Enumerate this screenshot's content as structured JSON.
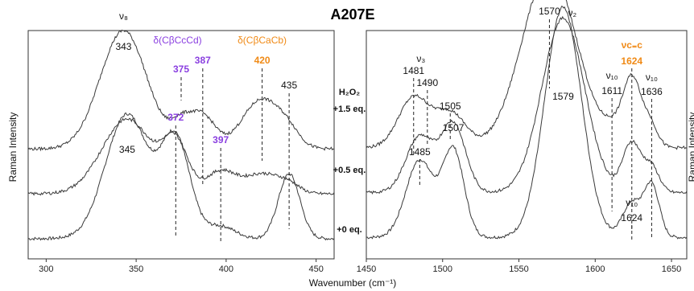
{
  "chart_data": {
    "type": "line",
    "title": "A207E",
    "xlabel": "Wavenumber (cm⁻¹)",
    "ylabel": "Raman Intensity",
    "ylabel_right": "Raman Intensity",
    "colors": {
      "line": "#3a3a3a",
      "purple": "#8a3fe0",
      "orange": "#f08a16"
    },
    "panels": [
      {
        "id": "low",
        "xlim": [
          290,
          460
        ],
        "ticks": [
          300,
          350,
          400,
          450
        ]
      },
      {
        "id": "high",
        "xlim": [
          1450,
          1660
        ],
        "ticks": [
          1450,
          1500,
          1550,
          1600,
          1650
        ]
      }
    ],
    "conditions": {
      "header": "H₂O₂",
      "labels": [
        "+1.5 eq.",
        "+0.5 eq.",
        "+0 eq."
      ]
    },
    "low_series": [
      {
        "condition": "+1.5 eq.",
        "offset": 0.72,
        "peaks": [
          [
            343,
            0.95,
            13
          ],
          [
            375,
            0.18,
            6
          ],
          [
            387,
            0.26,
            7
          ],
          [
            420,
            0.4,
            11
          ],
          [
            435,
            0.08,
            6
          ]
        ],
        "base": 0.02
      },
      {
        "condition": "+0.5 eq.",
        "offset": 0.36,
        "peaks": [
          [
            345,
            0.6,
            14
          ],
          [
            372,
            0.38,
            7
          ],
          [
            397,
            0.18,
            8
          ],
          [
            420,
            0.16,
            10
          ],
          [
            435,
            0.06,
            6
          ]
        ],
        "base": 0.02
      },
      {
        "condition": "+0 eq.",
        "offset": 0.0,
        "peaks": [
          [
            345,
            1.0,
            12
          ],
          [
            372,
            0.78,
            8
          ],
          [
            397,
            0.1,
            8
          ],
          [
            435,
            0.52,
            6
          ]
        ],
        "base": 0.02
      }
    ],
    "high_series": [
      {
        "condition": "+1.5 eq.",
        "offset": 0.72,
        "peaks": [
          [
            1481,
            0.4,
            10
          ],
          [
            1505,
            0.28,
            10
          ],
          [
            1570,
            1.42,
            18
          ],
          [
            1611,
            0.1,
            6
          ],
          [
            1624,
            0.55,
            6
          ],
          [
            1636,
            0.18,
            5
          ]
        ],
        "base": 0.03
      },
      {
        "condition": "+0.5 eq.",
        "offset": 0.36,
        "peaks": [
          [
            1485,
            0.45,
            9
          ],
          [
            1507,
            0.55,
            8
          ],
          [
            1579,
            1.4,
            14
          ],
          [
            1624,
            0.4,
            6
          ],
          [
            1637,
            0.2,
            5
          ]
        ],
        "base": 0.03
      },
      {
        "condition": "+0 eq.",
        "offset": 0.0,
        "peaks": [
          [
            1485,
            0.62,
            9
          ],
          [
            1507,
            0.7,
            7
          ],
          [
            1579,
            1.85,
            12
          ],
          [
            1624,
            0.28,
            6
          ],
          [
            1637,
            0.42,
            5
          ]
        ],
        "base": 0.03
      }
    ],
    "annotations": {
      "low": [
        {
          "text": "ν₈",
          "x": 343,
          "style": "lbl"
        },
        {
          "text": "343",
          "x": 343,
          "style": "lbl"
        },
        {
          "text": "375",
          "x": 375,
          "style": "purple",
          "line": [
            375,
            1
          ]
        },
        {
          "text": "387",
          "x": 387,
          "style": "purple",
          "line": [
            387,
            2
          ]
        },
        {
          "text": "420",
          "x": 420,
          "style": "orange",
          "line": [
            420,
            1
          ]
        },
        {
          "text": "435",
          "x": 435,
          "style": "lbl",
          "line": [
            435,
            0
          ]
        },
        {
          "text": "372",
          "x": 372,
          "style": "purple",
          "line": [
            372,
            1
          ]
        },
        {
          "text": "397",
          "x": 397,
          "style": "purple",
          "line": [
            397,
            2
          ]
        },
        {
          "text": "345",
          "x": 345,
          "style": "lbl"
        }
      ],
      "low_modes": [
        {
          "text": "δ(CβCcCd)",
          "x": 373,
          "style": "mode-purple"
        },
        {
          "text": "δ(CβCaCb)",
          "x": 420,
          "style": "mode-orange"
        }
      ],
      "high": [
        {
          "text": "1481",
          "x": 1481,
          "style": "lbl"
        },
        {
          "text": "ν₃",
          "x": 1490,
          "style": "lbl"
        },
        {
          "text": "1490",
          "x": 1490,
          "style": "lbl"
        },
        {
          "text": "1505",
          "x": 1505,
          "style": "lbl"
        },
        {
          "text": "1570",
          "x": 1570,
          "style": "lbl"
        },
        {
          "text": "ν₂",
          "x": 1585,
          "style": "lbl"
        },
        {
          "text": "νᴄ₌ᴄ",
          "x": 1624,
          "style": "orange"
        },
        {
          "text": "1624",
          "x": 1624,
          "style": "orange"
        },
        {
          "text": "ν₁₀",
          "x": 1611,
          "style": "lbl"
        },
        {
          "text": "1611",
          "x": 1611,
          "style": "lbl"
        },
        {
          "text": "ν₁₀",
          "x": 1637,
          "style": "lbl"
        },
        {
          "text": "1636",
          "x": 1637,
          "style": "lbl"
        },
        {
          "text": "1579",
          "x": 1579,
          "style": "lbl"
        },
        {
          "text": "1507",
          "x": 1507,
          "style": "lbl"
        },
        {
          "text": "1485",
          "x": 1485,
          "style": "lbl"
        },
        {
          "text": "ν₁₀",
          "x": 1624,
          "style": "lbl"
        },
        {
          "text": "1624",
          "x": 1624,
          "style": "lbl"
        }
      ]
    }
  }
}
